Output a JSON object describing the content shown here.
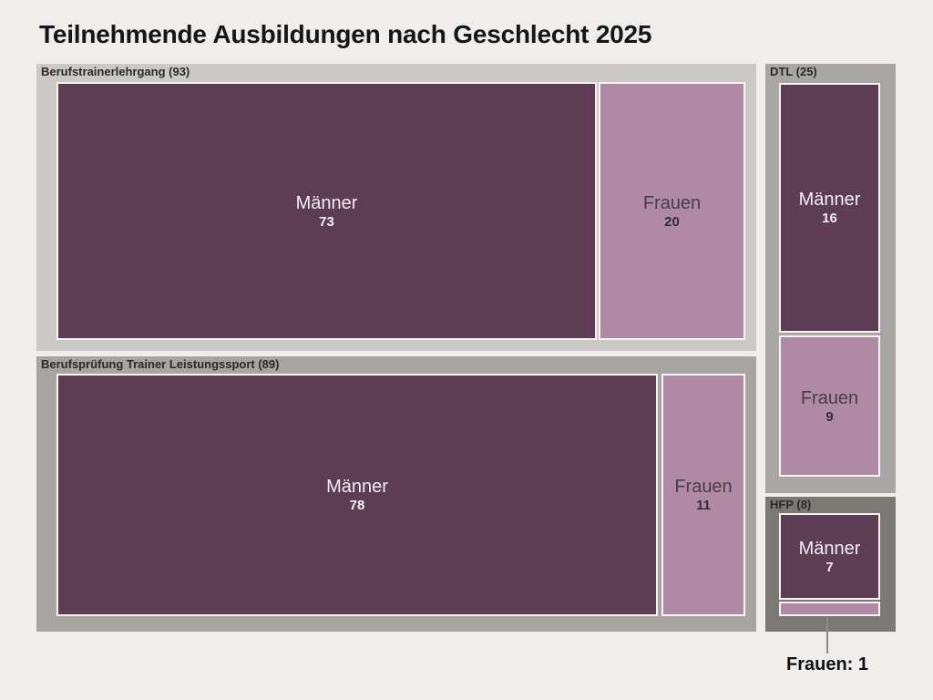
{
  "chart_data": {
    "type": "treemap",
    "title": "Teilnehmende Ausbildungen nach Geschlecht 2025",
    "legend": "none",
    "groups": [
      {
        "name": "Berufstrainerlehrgang",
        "header": "Berufstrainerlehrgang (93)",
        "total": 93,
        "children": [
          {
            "label": "Männer",
            "value": 73
          },
          {
            "label": "Frauen",
            "value": 20
          }
        ]
      },
      {
        "name": "Berufsprüfung Trainer Leistungssport",
        "header": "Berufsprüfung Trainer Leistungssport (89)",
        "total": 89,
        "children": [
          {
            "label": "Männer",
            "value": 78
          },
          {
            "label": "Frauen",
            "value": 11
          }
        ]
      },
      {
        "name": "DTL",
        "header": "DTL (25)",
        "total": 25,
        "children": [
          {
            "label": "Männer",
            "value": 16
          },
          {
            "label": "Frauen",
            "value": 9
          }
        ]
      },
      {
        "name": "HFP",
        "header": "HFP (8)",
        "total": 8,
        "children": [
          {
            "label": "Männer",
            "value": 7
          },
          {
            "label": "Frauen",
            "value": 1
          }
        ],
        "annotation": "Frauen: 1"
      }
    ],
    "colors": {
      "maenner": "#5d3d54",
      "frauen": "#b08aa5",
      "group_backgrounds": [
        "#cbc9c6",
        "#a7a4a1",
        "#a9a6a3",
        "#7c7975"
      ],
      "page_background": "#efeeec",
      "tile_border": "#f6f3f2"
    }
  }
}
